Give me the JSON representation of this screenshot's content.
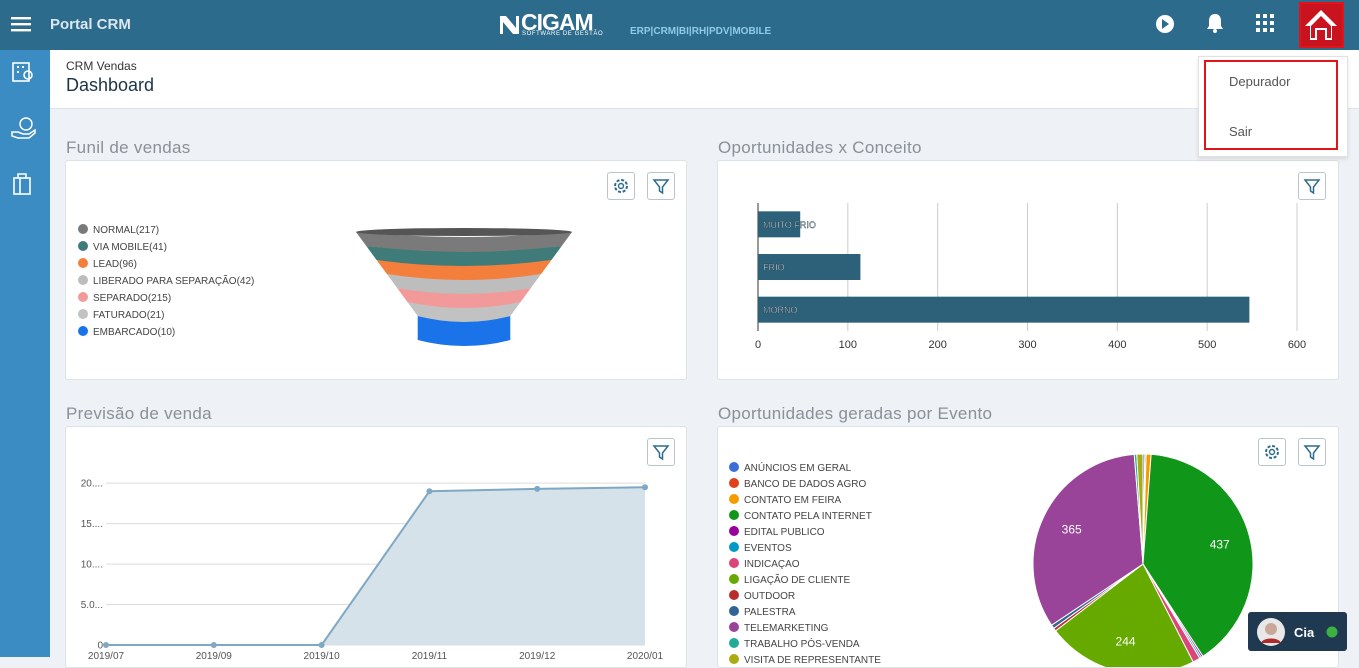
{
  "header": {
    "app_title": "Portal CRM",
    "logo": "CIGAM",
    "logo_subtitle": "SOFTWARE DE GESTÃO",
    "modules": "ERP|CRM|BI|RH|PDV|MOBILE"
  },
  "breadcrumb": {
    "parent": "CRM Vendas",
    "title": "Dashboard"
  },
  "user_menu": {
    "items": [
      "Depurador",
      "Sair"
    ]
  },
  "chat": {
    "label": "Cia"
  },
  "chart_data": [
    {
      "type": "funnel",
      "title": "Funil de vendas",
      "categories": [
        "NORMAL(217)",
        "VIA MOBILE(41)",
        "LEAD(96)",
        "LIBERADO PARA SEPARAÇÃO(42)",
        "SEPARADO(215)",
        "FATURADO(21)",
        "EMBARCADO(10)"
      ],
      "values": [
        217,
        41,
        96,
        42,
        215,
        21,
        10
      ],
      "colors": [
        "#7a7a7a",
        "#3f7b78",
        "#f47e3c",
        "#bdbdbd",
        "#f29a9a",
        "#c2c2c2",
        "#1a73e8"
      ]
    },
    {
      "type": "hbar",
      "title": "Oportunidades x Conceito",
      "categories": [
        "MUITO FRIO",
        "FRIO",
        "MORNO"
      ],
      "values": [
        47,
        114,
        547
      ],
      "color": "#2d6079",
      "xlim": [
        0,
        600
      ],
      "xticks": [
        0,
        100,
        200,
        300,
        400,
        500,
        600
      ],
      "grid": true
    },
    {
      "type": "area",
      "title": "Previsão de venda",
      "categories": [
        "2019/07",
        "2019/09",
        "2019/10",
        "2019/11",
        "2019/12",
        "2020/01"
      ],
      "values": [
        0,
        0,
        0,
        19.0,
        19.3,
        19.5
      ],
      "color": "#7ea8c3",
      "fill": "#d6e2ea",
      "ylim": [
        0,
        22
      ],
      "yticks": [
        {
          "value": 0,
          "label": "0"
        },
        {
          "value": 5,
          "label": "5.0..."
        },
        {
          "value": 10,
          "label": "10...."
        },
        {
          "value": 15,
          "label": "15...."
        },
        {
          "value": 20,
          "label": "20...."
        }
      ],
      "grid": true
    },
    {
      "type": "pie",
      "title": "Oportunidades geradas por Evento",
      "categories": [
        "ANÚNCIOS EM GERAL",
        "BANCO DE DADOS AGRO",
        "CONTATO EM FEIRA",
        "CONTATO PELA INTERNET",
        "EDITAL PUBLICO",
        "EVENTOS",
        "INDICAÇAO",
        "LIGAÇÃO DE CLIENTE",
        "OUTDOOR",
        "PALESTRA",
        "TELEMARKETING",
        "TRABALHO PÓS-VENDA",
        "VISITA DE REPRESENTANTE"
      ],
      "values": [
        3,
        2,
        8,
        437,
        3,
        3,
        12,
        244,
        5,
        6,
        365,
        4,
        10
      ],
      "colors": [
        "#3b6fd6",
        "#e0401c",
        "#f59b00",
        "#109618",
        "#990099",
        "#0099c6",
        "#dd4477",
        "#66aa00",
        "#b82e2e",
        "#316395",
        "#994499",
        "#22aa99",
        "#aaaa11"
      ]
    }
  ]
}
